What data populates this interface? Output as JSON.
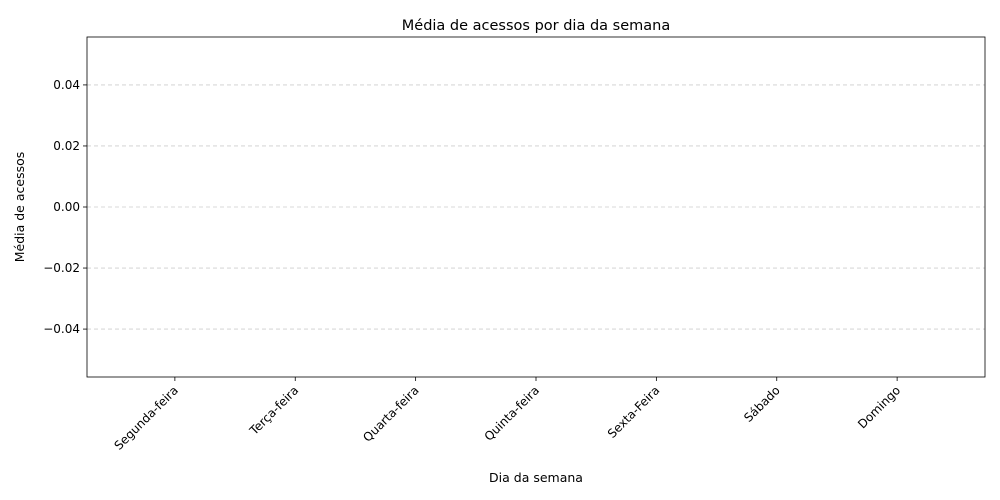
{
  "chart_data": {
    "type": "bar",
    "title": "Média de acessos por dia da semana",
    "x_label": "Dia da semana",
    "y_label": "Média de acessos",
    "categories": [
      "Segunda-feira",
      "Terça-feira",
      "Quarta-feira",
      "Quinta-feira",
      "Sexta-Feira",
      "Sábado",
      "Domingo"
    ],
    "values": [
      0,
      0,
      0,
      0,
      0,
      0,
      0
    ],
    "color": "#1f77b4",
    "ylim": [
      -0.0557,
      0.0557
    ],
    "yticks": [
      {
        "value": -0.04,
        "label": "−0.04"
      },
      {
        "value": -0.02,
        "label": "−0.02"
      },
      {
        "value": 0,
        "label": "0.00"
      },
      0.02,
      0.04
    ],
    "grid": true
  }
}
